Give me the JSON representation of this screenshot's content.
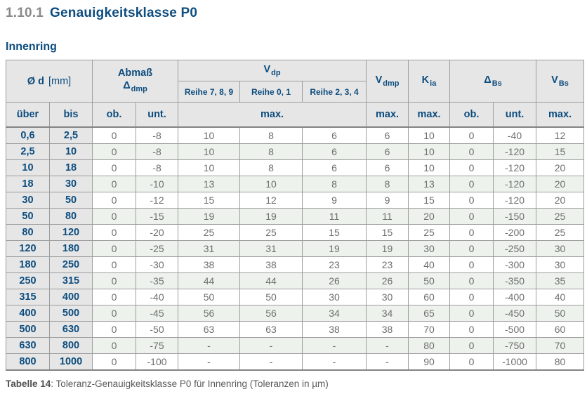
{
  "page": {
    "heading": {
      "number": "1.10.1",
      "title": "Genauigkeitsklasse P0"
    },
    "section_title": "Innenring",
    "caption": {
      "label": "Tabelle 14",
      "text": ": Toleranz-Genauigkeitsklasse P0 für Innenring (Toleranzen in µm)"
    }
  },
  "colors": {
    "accent_blue": "#0d4d7f",
    "title_number_gray": "#8a8a8a",
    "header_bg_gray": "#e6e6e6",
    "alt_row_green": "#edf3ec",
    "data_text_gray": "#6e6e6e",
    "border_gray": "#9d9d9d"
  },
  "table": {
    "header": {
      "d": {
        "main": "Ø d",
        "unit": "[mm]"
      },
      "abmass": {
        "line1": "Abmaß",
        "symbol": "Δ",
        "sub": "dmp"
      },
      "vdp": {
        "main": "V",
        "sub": "dp"
      },
      "reihe": [
        "Reihe 7, 8, 9",
        "Reihe 0, 1",
        "Reihe 2, 3, 4"
      ],
      "vdmp": {
        "main": "V",
        "sub": "dmp"
      },
      "kia": {
        "main": "K",
        "sub": "ia"
      },
      "dbs": {
        "main": "Δ",
        "sub": "Bs"
      },
      "vbs": {
        "main": "V",
        "sub": "Bs"
      }
    },
    "subheader": [
      "über",
      "bis",
      "ob.",
      "unt.",
      "max.",
      "max.",
      "max.",
      "ob.",
      "unt.",
      "max."
    ],
    "rows": [
      [
        "0,6",
        "2,5",
        "0",
        "-8",
        "10",
        "8",
        "6",
        "6",
        "10",
        "0",
        "-40",
        "12"
      ],
      [
        "2,5",
        "10",
        "0",
        "-8",
        "10",
        "8",
        "6",
        "6",
        "10",
        "0",
        "-120",
        "15"
      ],
      [
        "10",
        "18",
        "0",
        "-8",
        "10",
        "8",
        "6",
        "6",
        "10",
        "0",
        "-120",
        "20"
      ],
      [
        "18",
        "30",
        "0",
        "-10",
        "13",
        "10",
        "8",
        "8",
        "13",
        "0",
        "-120",
        "20"
      ],
      [
        "30",
        "50",
        "0",
        "-12",
        "15",
        "12",
        "9",
        "9",
        "15",
        "0",
        "-120",
        "20"
      ],
      [
        "50",
        "80",
        "0",
        "-15",
        "19",
        "19",
        "11",
        "11",
        "20",
        "0",
        "-150",
        "25"
      ],
      [
        "80",
        "120",
        "0",
        "-20",
        "25",
        "25",
        "15",
        "15",
        "25",
        "0",
        "-200",
        "25"
      ],
      [
        "120",
        "180",
        "0",
        "-25",
        "31",
        "31",
        "19",
        "19",
        "30",
        "0",
        "-250",
        "30"
      ],
      [
        "180",
        "250",
        "0",
        "-30",
        "38",
        "38",
        "23",
        "23",
        "40",
        "0",
        "-300",
        "30"
      ],
      [
        "250",
        "315",
        "0",
        "-35",
        "44",
        "44",
        "26",
        "26",
        "50",
        "0",
        "-350",
        "35"
      ],
      [
        "315",
        "400",
        "0",
        "-40",
        "50",
        "50",
        "30",
        "30",
        "60",
        "0",
        "-400",
        "40"
      ],
      [
        "400",
        "500",
        "0",
        "-45",
        "56",
        "56",
        "34",
        "34",
        "65",
        "0",
        "-450",
        "50"
      ],
      [
        "500",
        "630",
        "0",
        "-50",
        "63",
        "63",
        "38",
        "38",
        "70",
        "0",
        "-500",
        "60"
      ],
      [
        "630",
        "800",
        "0",
        "-75",
        "-",
        "-",
        "-",
        "-",
        "80",
        "0",
        "-750",
        "70"
      ],
      [
        "800",
        "1000",
        "0",
        "-100",
        "-",
        "-",
        "-",
        "-",
        "90",
        "0",
        "-1000",
        "80"
      ]
    ]
  }
}
